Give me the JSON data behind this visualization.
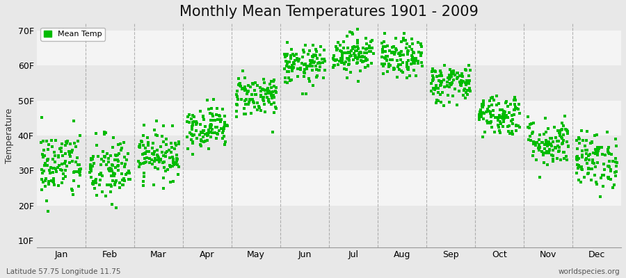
{
  "title": "Monthly Mean Temperatures 1901 - 2009",
  "ylabel": "Temperature",
  "yticks": [
    10,
    20,
    30,
    40,
    50,
    60,
    70
  ],
  "ytick_labels": [
    "10F",
    "20F",
    "30F",
    "40F",
    "50F",
    "60F",
    "70F"
  ],
  "ylim": [
    8,
    72
  ],
  "months": [
    "Jan",
    "Feb",
    "Mar",
    "Apr",
    "May",
    "Jun",
    "Jul",
    "Aug",
    "Sep",
    "Oct",
    "Nov",
    "Dec"
  ],
  "month_centers": [
    0.5,
    1.5,
    2.5,
    3.5,
    4.5,
    5.5,
    6.5,
    7.5,
    8.5,
    9.5,
    10.5,
    11.5
  ],
  "month_means_F": [
    31.5,
    30.0,
    34.5,
    42.5,
    51.5,
    60.0,
    63.5,
    62.0,
    55.0,
    46.0,
    38.0,
    33.0
  ],
  "month_stds_F": [
    5.0,
    5.0,
    3.5,
    3.0,
    3.0,
    2.8,
    2.8,
    2.8,
    2.8,
    3.0,
    3.5,
    4.0
  ],
  "n_years": 109,
  "dot_color": "#00bb00",
  "dot_size": 7,
  "bg_color_dark": "#e8e8e8",
  "bg_color_light": "#f4f4f4",
  "dashed_line_color": "#888888",
  "title_fontsize": 15,
  "axis_label_fontsize": 9,
  "tick_fontsize": 9,
  "legend_label": "Mean Temp",
  "footer_left": "Latitude 57.75 Longitude 11.75",
  "footer_right": "worldspecies.org",
  "seed": 42
}
